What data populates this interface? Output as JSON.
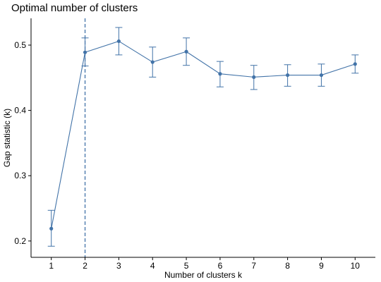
{
  "chart_data": {
    "type": "line",
    "title": "Optimal number of clusters",
    "xlabel": "Number of clusters k",
    "ylabel": "Gap statistic (k)",
    "x": [
      1,
      2,
      3,
      4,
      5,
      6,
      7,
      8,
      9,
      10
    ],
    "series": [
      {
        "values": [
          0.219,
          0.489,
          0.506,
          0.474,
          0.49,
          0.456,
          0.451,
          0.454,
          0.454,
          0.471
        ],
        "error_lower": [
          0.192,
          0.468,
          0.485,
          0.451,
          0.469,
          0.436,
          0.432,
          0.437,
          0.437,
          0.457
        ],
        "error_upper": [
          0.247,
          0.511,
          0.527,
          0.497,
          0.511,
          0.475,
          0.469,
          0.47,
          0.471,
          0.485
        ],
        "color": "#4273A8"
      }
    ],
    "optimal_k": 2,
    "xlim": [
      0.4,
      10.6
    ],
    "ylim": [
      0.175,
      0.541
    ],
    "yticks": [
      0.2,
      0.3,
      0.4,
      0.5
    ],
    "ytick_labels": [
      "0.2",
      "0.3",
      "0.4",
      "0.5"
    ],
    "xtick_labels": [
      "1",
      "2",
      "3",
      "4",
      "5",
      "6",
      "7",
      "8",
      "9",
      "10"
    ],
    "grid": false,
    "legend": "none"
  }
}
